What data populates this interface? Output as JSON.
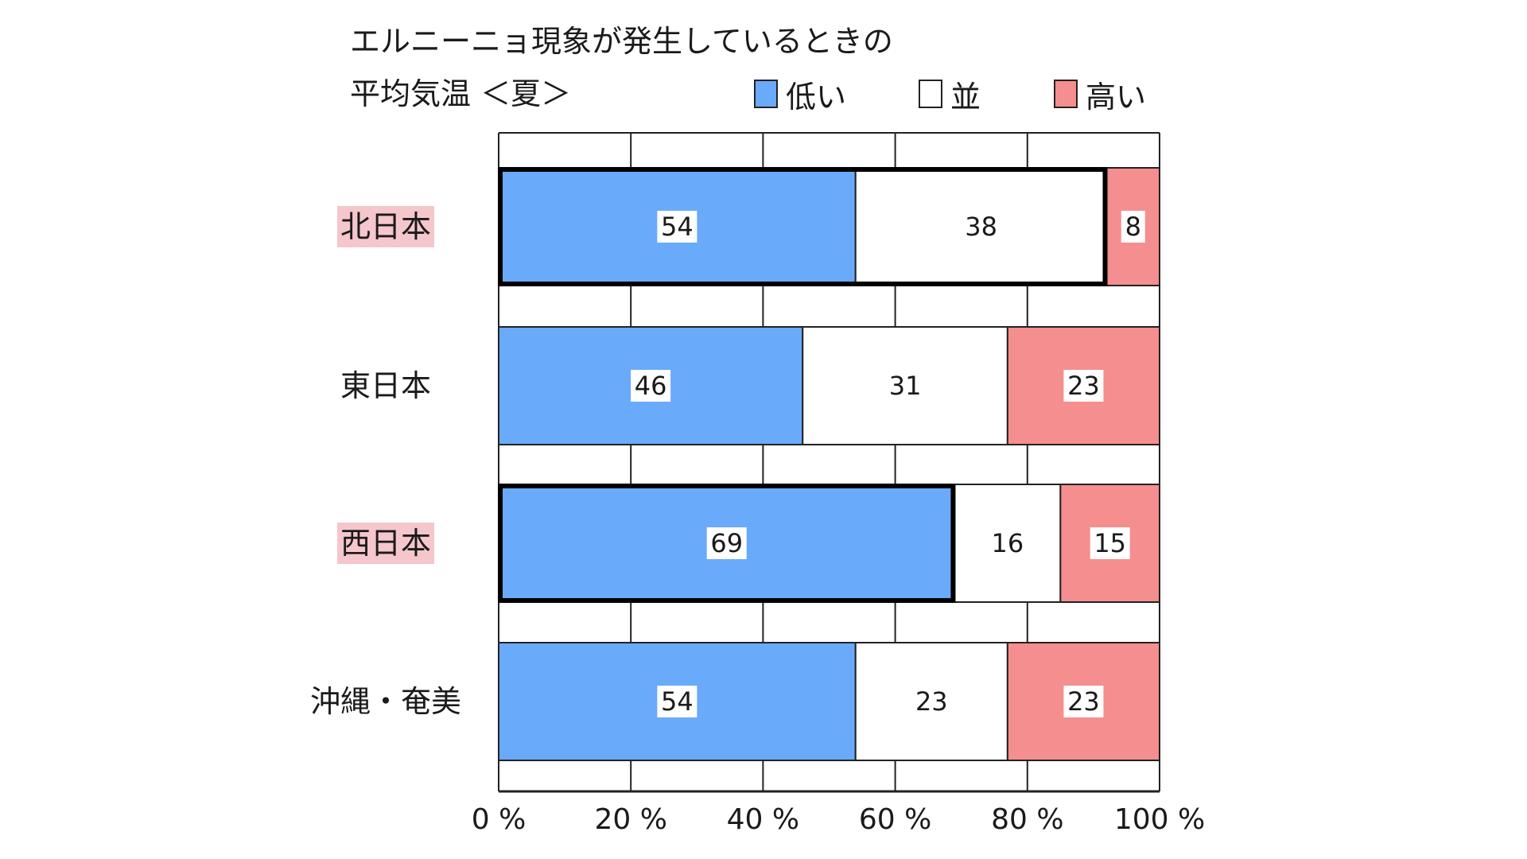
{
  "title": {
    "line1": "エルニーニョ現象が発生しているときの",
    "line2": "平均気温 ＜夏＞"
  },
  "legend": {
    "low": "低い",
    "mid": "並",
    "high": "高い"
  },
  "colors": {
    "low": "#6aaafa",
    "mid": "#ffffff",
    "high": "#f58e8e",
    "highlight_label_bg": "#f5c6cc",
    "axis": "#222222",
    "grid": "#222222"
  },
  "chart_data": {
    "type": "bar",
    "orientation": "horizontal",
    "stacked": true,
    "categories": [
      "北日本",
      "東日本",
      "西日本",
      "沖縄・奄美"
    ],
    "series": [
      {
        "name": "低い",
        "values": [
          54,
          46,
          69,
          54
        ]
      },
      {
        "name": "並",
        "values": [
          38,
          31,
          16,
          23
        ]
      },
      {
        "name": "高い",
        "values": [
          8,
          23,
          15,
          23
        ]
      }
    ],
    "title": "エルニーニョ現象が発生しているときの 平均気温 ＜夏＞",
    "xlabel": "",
    "ylabel": "",
    "xlim": [
      0,
      100
    ],
    "x_ticks": [
      "0 %",
      "20 %",
      "40 %",
      "60 %",
      "80 %",
      "100 %"
    ],
    "grid": true,
    "legend_position": "top-right",
    "highlighted_categories": [
      "北日本",
      "西日本"
    ],
    "emphasized_segments": [
      {
        "category": "北日本",
        "series": [
          "低い",
          "並"
        ]
      },
      {
        "category": "西日本",
        "series": [
          "低い"
        ]
      }
    ]
  }
}
